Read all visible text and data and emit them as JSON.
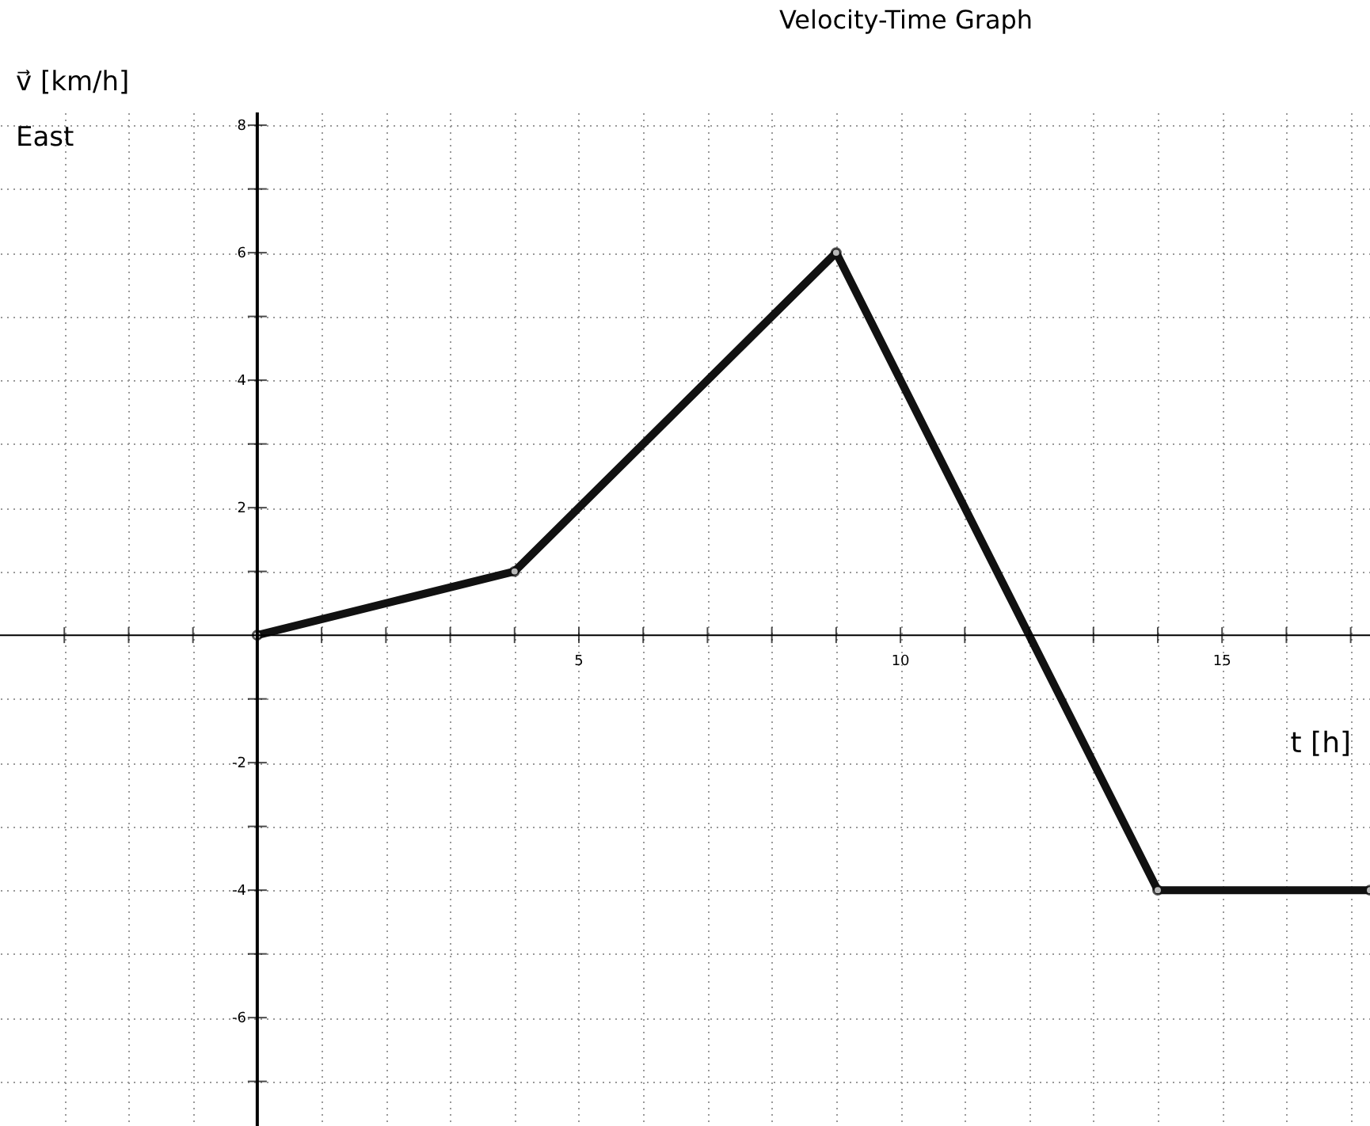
{
  "chart_data": {
    "type": "line",
    "title": "Velocity-Time Graph",
    "xlabel": "t [h]",
    "ylabel": "v⃗ [km/h]",
    "annotations": [
      "East"
    ],
    "x": [
      0,
      4,
      9,
      14,
      17.3
    ],
    "series": [
      {
        "color": "#111111",
        "values": [
          0,
          1,
          6,
          -4,
          -4
        ]
      }
    ],
    "xlim": [
      -4,
      17.3
    ],
    "ylim": [
      -7.7,
      8.2
    ],
    "xticks": [
      {
        "value": -3,
        "label": null
      },
      {
        "value": -2,
        "label": null
      },
      {
        "value": -1,
        "label": null
      },
      {
        "value": 1,
        "label": null
      },
      {
        "value": 2,
        "label": null
      },
      {
        "value": 3,
        "label": null
      },
      {
        "value": 4,
        "label": null
      },
      5,
      {
        "value": 6,
        "label": null
      },
      {
        "value": 7,
        "label": null
      },
      {
        "value": 8,
        "label": null
      },
      {
        "value": 9,
        "label": null
      },
      10,
      {
        "value": 11,
        "label": null
      },
      {
        "value": 12,
        "label": null
      },
      {
        "value": 13,
        "label": null
      },
      {
        "value": 14,
        "label": null
      },
      15,
      {
        "value": 16,
        "label": null
      },
      {
        "value": 17,
        "label": null
      }
    ],
    "yticks": [
      {
        "value": -7,
        "label": null
      },
      -6,
      {
        "value": -5,
        "label": null
      },
      -4,
      {
        "value": -3,
        "label": null
      },
      -2,
      {
        "value": -1,
        "label": null
      },
      {
        "value": 1,
        "label": null
      },
      2,
      {
        "value": 3,
        "label": null
      },
      4,
      {
        "value": 5,
        "label": null
      },
      6,
      {
        "value": 7,
        "label": null
      },
      8
    ],
    "grid": true,
    "marker": "circle",
    "line_style": "solid"
  }
}
